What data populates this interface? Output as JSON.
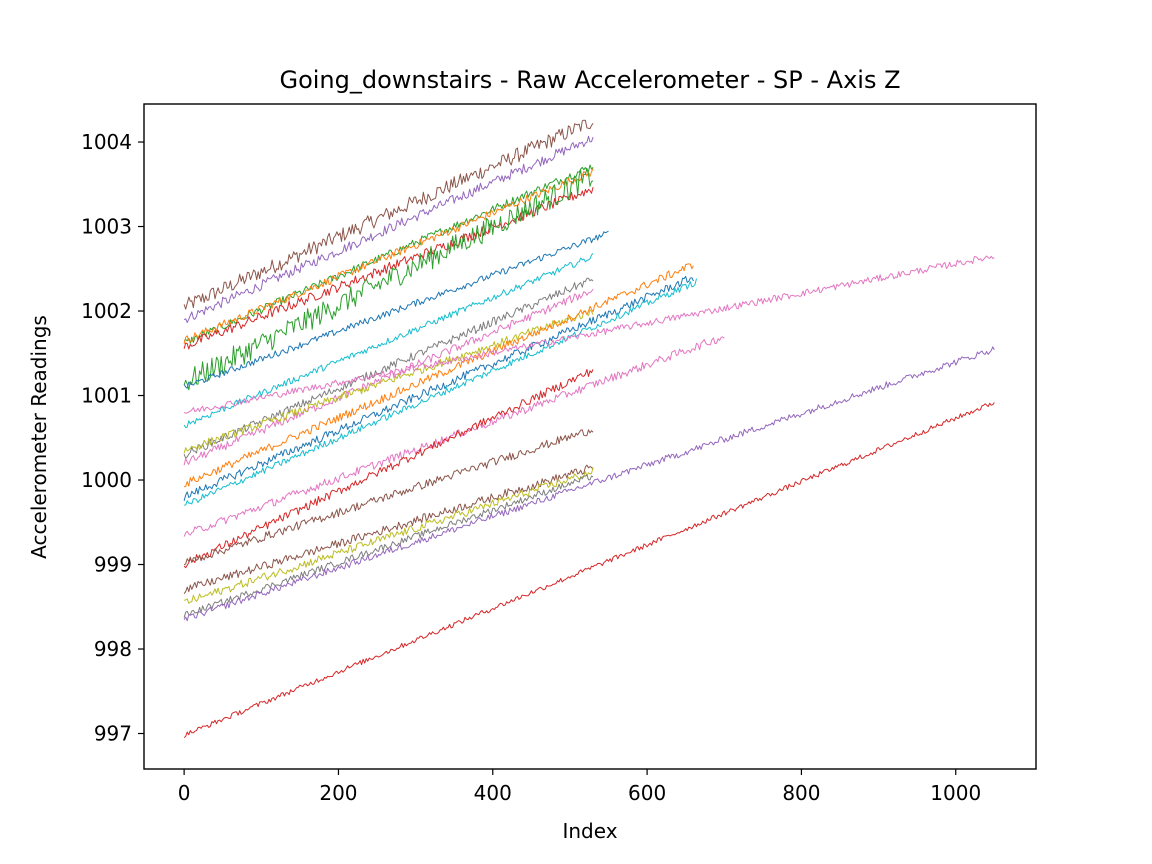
{
  "chart_data": {
    "type": "line",
    "title": "Going_downstairs - Raw Accelerometer - SP - Axis Z",
    "xlabel": "Index",
    "ylabel": "Accelerometer Readings",
    "xlim": [
      -52,
      1104
    ],
    "ylim": [
      996.58,
      1004.45
    ],
    "xticks": [
      0,
      200,
      400,
      600,
      800,
      1000
    ],
    "yticks": [
      997,
      998,
      999,
      1000,
      1001,
      1002,
      1003,
      1004
    ],
    "grid": false,
    "series": [
      {
        "color": "#8c564b",
        "start": 2.05,
        "end": 4.25,
        "length": 530,
        "noise": 0.09
      },
      {
        "color": "#9467bd",
        "start": 1.9,
        "end": 4.05,
        "length": 530,
        "noise": 0.06
      },
      {
        "color": "#2ca02c",
        "start": 1.62,
        "end": 3.72,
        "length": 530,
        "noise": 0.05
      },
      {
        "color": "#ff7f0e",
        "start": 1.65,
        "end": 3.65,
        "length": 530,
        "noise": 0.05
      },
      {
        "color": "#d62728",
        "start": 1.58,
        "end": 3.45,
        "length": 530,
        "noise": 0.06
      },
      {
        "color": "#2ca02c",
        "start": 1.15,
        "end": 3.6,
        "length": 530,
        "noise": 0.14
      },
      {
        "color": "#1f77b4",
        "start": 1.1,
        "end": 2.92,
        "length": 550,
        "noise": 0.04
      },
      {
        "color": "#17becf",
        "start": 0.65,
        "end": 2.65,
        "length": 530,
        "noise": 0.04
      },
      {
        "color": "#7f7f7f",
        "start": 0.3,
        "end": 2.38,
        "length": 530,
        "noise": 0.05
      },
      {
        "color": "#e377c2",
        "start": 0.2,
        "end": 2.25,
        "length": 530,
        "noise": 0.05
      },
      {
        "color": "#bcbd22",
        "start": 0.35,
        "end": 2.0,
        "length": 530,
        "noise": 0.05
      },
      {
        "color": "#ff7f0e",
        "start": -0.05,
        "end": 2.55,
        "length": 660,
        "noise": 0.05
      },
      {
        "color": "#1f77b4",
        "start": -0.2,
        "end": 2.4,
        "length": 660,
        "noise": 0.05
      },
      {
        "color": "#17becf",
        "start": -0.3,
        "end": 2.35,
        "length": 665,
        "noise": 0.04
      },
      {
        "color": "#e377c2",
        "start": -0.65,
        "end": 1.7,
        "length": 700,
        "noise": 0.05
      },
      {
        "color": "#e377c2",
        "start": 0.8,
        "end": 2.65,
        "length": 1050,
        "noise": 0.04
      },
      {
        "color": "#d62728",
        "start": -1.0,
        "end": 1.3,
        "length": 530,
        "noise": 0.05
      },
      {
        "color": "#8c564b",
        "start": -0.98,
        "end": 0.6,
        "length": 530,
        "noise": 0.05
      },
      {
        "color": "#8c564b",
        "start": -1.3,
        "end": 0.15,
        "length": 530,
        "noise": 0.05
      },
      {
        "color": "#bcbd22",
        "start": -1.45,
        "end": 0.1,
        "length": 530,
        "noise": 0.05
      },
      {
        "color": "#7f7f7f",
        "start": -1.6,
        "end": 0.05,
        "length": 530,
        "noise": 0.04
      },
      {
        "color": "#9467bd",
        "start": -1.65,
        "end": 1.55,
        "length": 1050,
        "noise": 0.04
      },
      {
        "color": "#d62728",
        "start": -3.02,
        "end": 0.92,
        "length": 1050,
        "noise": 0.03
      }
    ]
  }
}
